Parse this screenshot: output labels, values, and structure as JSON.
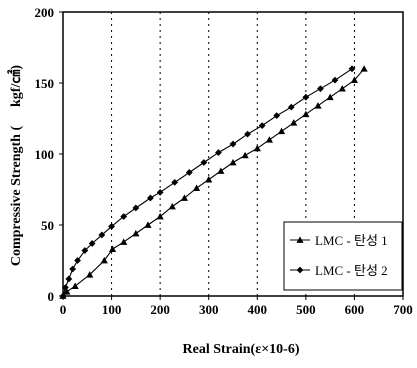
{
  "chart_data": {
    "type": "line",
    "xlabel": "Real Strain(ε×10-6)",
    "ylabel": "Compressive Strength (",
    "ylabel_unit": "kgf/㎠)",
    "xlim": [
      0,
      700
    ],
    "ylim": [
      0,
      200
    ],
    "x_ticks": [
      0,
      100,
      200,
      300,
      400,
      500,
      600,
      700
    ],
    "y_ticks": [
      0,
      50,
      100,
      150,
      200
    ],
    "x_tick_labels": [
      "0",
      "100",
      "200",
      "300",
      "400",
      "500",
      "600",
      "700"
    ],
    "y_tick_labels": [
      "0",
      "50",
      "100",
      "150",
      "200"
    ],
    "grid": "vertical dotted",
    "legend_position": "bottom-right",
    "series": [
      {
        "name": "LMC - 탄성 1",
        "marker": "triangle",
        "color": "#000000",
        "x": [
          0,
          8,
          25,
          55,
          85,
          102,
          125,
          150,
          175,
          200,
          225,
          250,
          275,
          300,
          325,
          350,
          375,
          400,
          425,
          450,
          475,
          500,
          525,
          550,
          575,
          600,
          620
        ],
        "y": [
          0,
          3,
          7,
          15,
          25,
          33,
          38,
          44,
          50,
          56,
          63,
          69,
          76,
          82,
          88,
          94,
          99,
          104,
          110,
          116,
          122,
          128,
          134,
          140,
          146,
          152,
          160
        ]
      },
      {
        "name": "LMC - 탄성 2",
        "marker": "diamond",
        "color": "#000000",
        "x": [
          0,
          5,
          12,
          20,
          30,
          45,
          60,
          80,
          100,
          125,
          150,
          180,
          200,
          230,
          260,
          290,
          320,
          350,
          380,
          410,
          440,
          470,
          500,
          530,
          560,
          595
        ],
        "y": [
          0,
          6,
          12,
          19,
          25,
          32,
          37,
          43,
          49,
          56,
          62,
          69,
          73,
          80,
          87,
          94,
          101,
          107,
          114,
          120,
          127,
          133,
          140,
          146,
          152,
          160
        ]
      }
    ]
  }
}
